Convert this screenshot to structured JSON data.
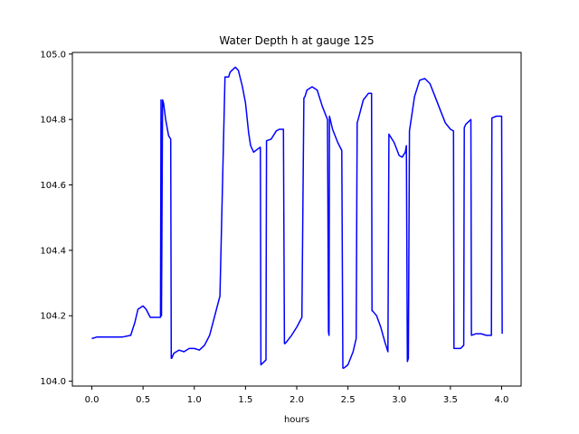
{
  "chart_data": {
    "type": "line",
    "title": "Water Depth h at gauge 125",
    "xlabel": "hours",
    "ylabel": "",
    "xlim": [
      -0.19,
      4.19
    ],
    "ylim": [
      103.985,
      105.005
    ],
    "xticks": [
      0.0,
      0.5,
      1.0,
      1.5,
      2.0,
      2.5,
      3.0,
      3.5,
      4.0
    ],
    "xtick_labels": [
      "0.0",
      "0.5",
      "1.0",
      "1.5",
      "2.0",
      "2.5",
      "3.0",
      "3.5",
      "4.0"
    ],
    "yticks": [
      104.0,
      104.2,
      104.4,
      104.6,
      104.8,
      105.0
    ],
    "ytick_labels": [
      "104.0",
      "104.2",
      "104.4",
      "104.6",
      "104.8",
      "105.0"
    ],
    "grid": false,
    "series": [
      {
        "color": "#0000ff",
        "x": [
          0.0,
          0.05,
          0.15,
          0.3,
          0.38,
          0.42,
          0.45,
          0.5,
          0.53,
          0.57,
          0.62,
          0.65,
          0.67,
          0.675,
          0.68,
          0.69,
          0.7,
          0.72,
          0.75,
          0.77,
          0.775,
          0.78,
          0.8,
          0.85,
          0.9,
          0.95,
          1.0,
          1.05,
          1.1,
          1.15,
          1.2,
          1.25,
          1.3,
          1.33,
          1.335,
          1.35,
          1.4,
          1.43,
          1.47,
          1.5,
          1.53,
          1.55,
          1.58,
          1.62,
          1.645,
          1.65,
          1.7,
          1.705,
          1.75,
          1.8,
          1.83,
          1.85,
          1.87,
          1.88,
          1.885,
          1.9,
          1.95,
          2.0,
          2.05,
          2.07,
          2.08,
          2.1,
          2.15,
          2.2,
          2.25,
          2.3,
          2.31,
          2.315,
          2.32,
          2.35,
          2.4,
          2.44,
          2.45,
          2.46,
          2.5,
          2.55,
          2.58,
          2.59,
          2.6,
          2.65,
          2.7,
          2.73,
          2.735,
          2.74,
          2.78,
          2.82,
          2.86,
          2.89,
          2.9,
          2.95,
          3.0,
          3.03,
          3.06,
          3.07,
          3.08,
          3.09,
          3.1,
          3.15,
          3.2,
          3.25,
          3.3,
          3.35,
          3.4,
          3.45,
          3.5,
          3.53,
          3.535,
          3.55,
          3.6,
          3.63,
          3.635,
          3.65,
          3.7,
          3.705,
          3.75,
          3.8,
          3.85,
          3.9,
          3.905,
          3.95,
          4.0,
          4.005
        ],
        "y": [
          104.13,
          104.135,
          104.135,
          104.135,
          104.14,
          104.18,
          104.22,
          104.23,
          104.22,
          104.195,
          104.195,
          104.195,
          104.195,
          104.86,
          104.2,
          104.86,
          104.85,
          104.8,
          104.75,
          104.74,
          104.07,
          104.07,
          104.085,
          104.095,
          104.09,
          104.1,
          104.1,
          104.095,
          104.11,
          104.14,
          104.2,
          104.26,
          104.93,
          104.93,
          104.93,
          104.945,
          104.96,
          104.95,
          104.9,
          104.85,
          104.76,
          104.72,
          104.7,
          104.71,
          104.715,
          104.05,
          104.065,
          104.735,
          104.74,
          104.765,
          104.77,
          104.77,
          104.77,
          104.115,
          104.115,
          104.12,
          104.14,
          104.165,
          104.195,
          104.865,
          104.87,
          104.89,
          104.9,
          104.89,
          104.84,
          104.8,
          104.15,
          104.14,
          104.81,
          104.77,
          104.73,
          104.705,
          104.04,
          104.04,
          104.05,
          104.09,
          104.13,
          104.79,
          104.8,
          104.86,
          104.88,
          104.88,
          104.215,
          104.215,
          104.2,
          104.165,
          104.12,
          104.09,
          104.755,
          104.73,
          104.69,
          104.685,
          104.7,
          104.72,
          104.06,
          104.07,
          104.765,
          104.87,
          104.92,
          104.925,
          104.91,
          104.87,
          104.83,
          104.79,
          104.77,
          104.765,
          104.1,
          104.1,
          104.1,
          104.11,
          104.775,
          104.785,
          104.8,
          104.14,
          104.145,
          104.145,
          104.14,
          104.14,
          104.805,
          104.81,
          104.81,
          104.145
        ]
      }
    ]
  }
}
